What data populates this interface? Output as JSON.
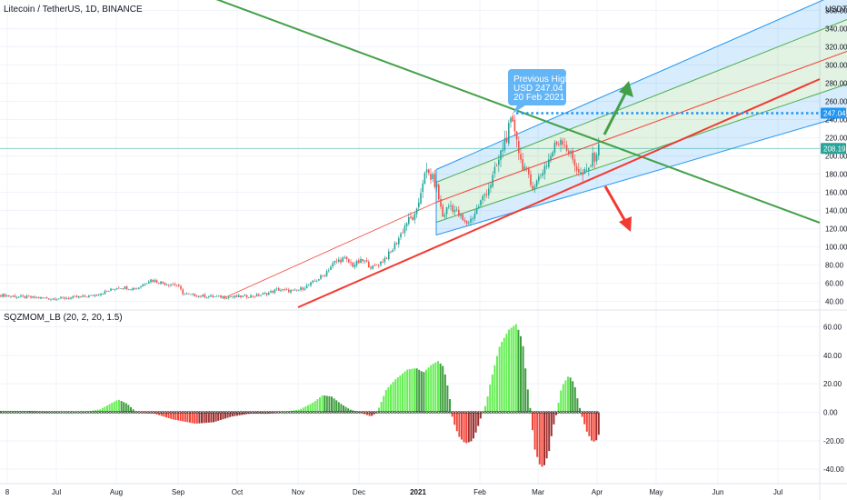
{
  "header": {
    "symbol_title": "Litecoin / TetherUS, 1D, BINANCE",
    "currency": "USDT",
    "indicator_title": "SQZMOM_LB (20, 2, 20, 1.5)"
  },
  "annotation": {
    "line1": "Previous High:",
    "line2": "USD 247.04",
    "line3": "20 Feb 2021"
  },
  "colors": {
    "bull": "#26a69a",
    "bear": "#ef5350",
    "green_line": "#43a047",
    "red_line": "#f23a30",
    "channel_outer": "#2196f3",
    "channel_inner": "#4caf50",
    "channel_mid": "#f44336",
    "callout_bg": "#64b5f6",
    "hline_price": "#2196f3",
    "current_price": "#26a69a",
    "mom_lime": "#66ee55",
    "mom_green": "#3e9e3e",
    "mom_red": "#f44336",
    "mom_maroon": "#a03030"
  },
  "chart_data": [
    {
      "type": "candlestick",
      "title": "Litecoin / TetherUS, 1D, BINANCE",
      "y_unit": "USDT",
      "y_ticks": [
        40,
        60,
        80,
        100,
        120,
        140,
        160,
        180,
        200,
        220,
        240,
        260,
        280,
        300,
        320,
        340,
        360
      ],
      "y_tick_labels": [
        "40.00",
        "60.00",
        "80.00",
        "100.00",
        "120.00",
        "140.00",
        "160.00",
        "180.00",
        "200.00",
        "220.00",
        "240.00",
        "260.00",
        "280.00",
        "300.00",
        "320.00",
        "340.00",
        "360.00"
      ],
      "x_tick_labels": [
        "8",
        "Jul",
        "Aug",
        "Sep",
        "Oct",
        "Nov",
        "Dec",
        "2021",
        "Feb",
        "Mar",
        "Apr",
        "May",
        "Jun",
        "Jul"
      ],
      "price_labels": [
        {
          "value": 247.04,
          "label": "247.04",
          "kind": "previous-high"
        },
        {
          "value": 208.19,
          "label": "208.19",
          "kind": "last-price"
        }
      ],
      "previous_high": {
        "value": 247.04,
        "date": "20 Feb 2021"
      },
      "last_price": 208.19,
      "close_path": [
        [
          0,
          47
        ],
        [
          20,
          45
        ],
        [
          40,
          44
        ],
        [
          60,
          43
        ],
        [
          80,
          44
        ],
        [
          100,
          46
        ],
        [
          118,
          51
        ],
        [
          130,
          56
        ],
        [
          150,
          54
        ],
        [
          165,
          64
        ],
        [
          180,
          60
        ],
        [
          195,
          58
        ],
        [
          202,
          48
        ],
        [
          220,
          46
        ],
        [
          240,
          45
        ],
        [
          260,
          45
        ],
        [
          280,
          46
        ],
        [
          295,
          49
        ],
        [
          305,
          53
        ],
        [
          315,
          52
        ],
        [
          325,
          51
        ],
        [
          340,
          58
        ],
        [
          355,
          68
        ],
        [
          368,
          83
        ],
        [
          378,
          87
        ],
        [
          388,
          80
        ],
        [
          400,
          85
        ],
        [
          410,
          77
        ],
        [
          420,
          84
        ],
        [
          430,
          94
        ],
        [
          440,
          112
        ],
        [
          448,
          128
        ],
        [
          458,
          134
        ],
        [
          465,
          173
        ],
        [
          470,
          182
        ],
        [
          475,
          176
        ],
        [
          480,
          168
        ],
        [
          487,
          133
        ],
        [
          495,
          147
        ],
        [
          505,
          135
        ],
        [
          512,
          125
        ],
        [
          518,
          130
        ],
        [
          525,
          142
        ],
        [
          532,
          155
        ],
        [
          540,
          170
        ],
        [
          548,
          192
        ],
        [
          555,
          216
        ],
        [
          562,
          234
        ],
        [
          568,
          228
        ],
        [
          572,
          196
        ],
        [
          578,
          186
        ],
        [
          584,
          168
        ],
        [
          590,
          170
        ],
        [
          598,
          186
        ],
        [
          605,
          198
        ],
        [
          612,
          213
        ],
        [
          618,
          221
        ],
        [
          625,
          206
        ],
        [
          632,
          192
        ],
        [
          640,
          178
        ],
        [
          646,
          182
        ],
        [
          652,
          196
        ],
        [
          658,
          207
        ],
        [
          661,
          208
        ]
      ],
      "trend_lines": [
        {
          "name": "descending-resistance",
          "from": [
            "Jun 2020",
            485
          ],
          "to": [
            "Jul 2021",
            126
          ]
        },
        {
          "name": "ascending-support",
          "from": [
            "Nov 2020",
            34
          ],
          "to": [
            "Jul 2021",
            285
          ]
        }
      ],
      "regression_channel": {
        "start": "Jan 2021",
        "end": "Jul 2021",
        "outer_upper": [
          [
            480,
            185
          ],
          [
            932,
            383
          ]
        ],
        "inner_upper": [
          [
            480,
            171
          ],
          [
            932,
            350
          ]
        ],
        "median": [
          [
            480,
            149
          ],
          [
            932,
            315
          ]
        ],
        "inner_lower": [
          [
            480,
            127
          ],
          [
            932,
            279
          ]
        ],
        "outer_lower": [
          [
            480,
            113
          ],
          [
            932,
            245
          ]
        ]
      },
      "median_extension": {
        "from": [
          245,
          43
        ],
        "to": [
          480,
          149
        ]
      },
      "scenario_arrows": [
        {
          "direction": "up",
          "color": "green"
        },
        {
          "direction": "down",
          "color": "red"
        }
      ]
    },
    {
      "type": "bar",
      "title": "SQZMOM_LB (20, 2, 20, 1.5)",
      "y_ticks": [
        -40,
        -20,
        0,
        20,
        40,
        60
      ],
      "y_tick_labels": [
        "-40.00",
        "-20.00",
        "0.00",
        "20.00",
        "40.00",
        "60.00"
      ],
      "squeeze_dots": "cross markers on zero line",
      "momentum_path": [
        [
          0,
          1
        ],
        [
          30,
          1
        ],
        [
          60,
          0
        ],
        [
          90,
          0
        ],
        [
          110,
          2
        ],
        [
          130,
          9
        ],
        [
          140,
          6
        ],
        [
          150,
          0
        ],
        [
          170,
          -1
        ],
        [
          190,
          -5
        ],
        [
          215,
          -8
        ],
        [
          235,
          -7
        ],
        [
          255,
          -3
        ],
        [
          275,
          -1
        ],
        [
          295,
          -1
        ],
        [
          310,
          0
        ],
        [
          330,
          2
        ],
        [
          345,
          7
        ],
        [
          355,
          12
        ],
        [
          365,
          11
        ],
        [
          375,
          6
        ],
        [
          385,
          2
        ],
        [
          400,
          -1
        ],
        [
          408,
          -3
        ],
        [
          415,
          0
        ],
        [
          425,
          16
        ],
        [
          435,
          23
        ],
        [
          448,
          30
        ],
        [
          458,
          31
        ],
        [
          466,
          28
        ],
        [
          474,
          33
        ],
        [
          482,
          36
        ],
        [
          488,
          32
        ],
        [
          494,
          14
        ],
        [
          498,
          -5
        ],
        [
          505,
          -17
        ],
        [
          512,
          -22
        ],
        [
          520,
          -20
        ],
        [
          525,
          -12
        ],
        [
          530,
          -2
        ],
        [
          535,
          6
        ],
        [
          540,
          22
        ],
        [
          550,
          47
        ],
        [
          560,
          58
        ],
        [
          568,
          62
        ],
        [
          575,
          50
        ],
        [
          580,
          20
        ],
        [
          584,
          0
        ],
        [
          588,
          -25
        ],
        [
          594,
          -37
        ],
        [
          598,
          -39
        ],
        [
          604,
          -28
        ],
        [
          608,
          -12
        ],
        [
          612,
          -2
        ],
        [
          618,
          18
        ],
        [
          626,
          26
        ],
        [
          632,
          20
        ],
        [
          636,
          8
        ],
        [
          640,
          -2
        ],
        [
          646,
          -14
        ],
        [
          652,
          -21
        ],
        [
          656,
          -20
        ],
        [
          660,
          -14
        ]
      ]
    }
  ]
}
